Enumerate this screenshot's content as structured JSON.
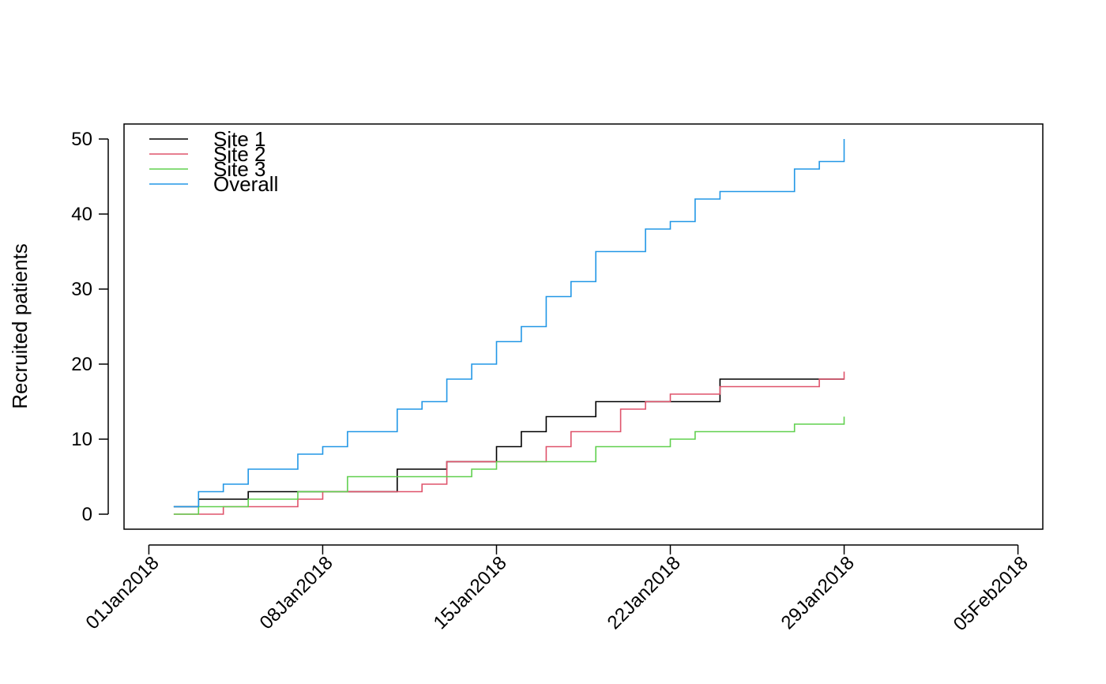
{
  "chart_data": {
    "type": "line",
    "title": "",
    "xlabel": "",
    "ylabel": "Recruited patients",
    "x_ticks": [
      "01Jan2018",
      "08Jan2018",
      "15Jan2018",
      "22Jan2018",
      "29Jan2018",
      "05Feb2018"
    ],
    "y_ticks": [
      "0",
      "10",
      "20",
      "30",
      "40",
      "50"
    ],
    "xlim": [
      "2017-12-31",
      "2018-02-06"
    ],
    "ylim": [
      -2,
      52
    ],
    "grid": false,
    "legend_position": "top-left",
    "step": true,
    "series": [
      {
        "name": "Site 1",
        "color": "#000000",
        "x": [
          "2018-01-02",
          "2018-01-03",
          "2018-01-05",
          "2018-01-11",
          "2018-01-13",
          "2018-01-15",
          "2018-01-16",
          "2018-01-17",
          "2018-01-19",
          "2018-01-21",
          "2018-01-24",
          "2018-01-28",
          "2018-01-29"
        ],
        "y": [
          1,
          2,
          3,
          6,
          7,
          9,
          11,
          13,
          15,
          15,
          18,
          18,
          18
        ]
      },
      {
        "name": "Site 2",
        "color": "#DF536B",
        "x": [
          "2018-01-02",
          "2018-01-03",
          "2018-01-04",
          "2018-01-07",
          "2018-01-08",
          "2018-01-12",
          "2018-01-13",
          "2018-01-14",
          "2018-01-17",
          "2018-01-18",
          "2018-01-20",
          "2018-01-21",
          "2018-01-22",
          "2018-01-24",
          "2018-01-28",
          "2018-01-29"
        ],
        "y": [
          0,
          0,
          1,
          2,
          3,
          4,
          7,
          7,
          9,
          11,
          14,
          15,
          16,
          17,
          18,
          19
        ]
      },
      {
        "name": "Site 3",
        "color": "#61D04F",
        "x": [
          "2018-01-02",
          "2018-01-03",
          "2018-01-05",
          "2018-01-07",
          "2018-01-09",
          "2018-01-14",
          "2018-01-15",
          "2018-01-19",
          "2018-01-22",
          "2018-01-23",
          "2018-01-27",
          "2018-01-29"
        ],
        "y": [
          0,
          1,
          2,
          3,
          5,
          6,
          7,
          9,
          10,
          11,
          12,
          13
        ]
      },
      {
        "name": "Overall",
        "color": "#2297E6",
        "x": [
          "2018-01-02",
          "2018-01-03",
          "2018-01-04",
          "2018-01-05",
          "2018-01-07",
          "2018-01-08",
          "2018-01-09",
          "2018-01-11",
          "2018-01-12",
          "2018-01-13",
          "2018-01-14",
          "2018-01-15",
          "2018-01-16",
          "2018-01-17",
          "2018-01-18",
          "2018-01-19",
          "2018-01-21",
          "2018-01-22",
          "2018-01-23",
          "2018-01-24",
          "2018-01-27",
          "2018-01-28",
          "2018-01-29"
        ],
        "y": [
          1,
          3,
          4,
          6,
          8,
          9,
          11,
          14,
          15,
          18,
          20,
          23,
          25,
          29,
          31,
          35,
          38,
          39,
          42,
          43,
          46,
          47,
          50
        ]
      }
    ]
  }
}
